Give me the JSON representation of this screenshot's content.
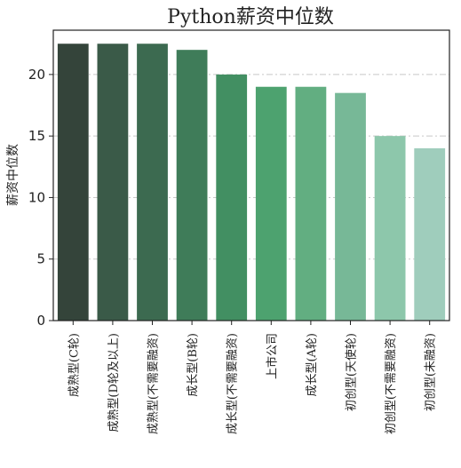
{
  "chart_data": {
    "type": "bar",
    "title": "Python薪资中位数",
    "xlabel": "",
    "ylabel": "薪资中位数",
    "ylim": [
      0,
      23.6
    ],
    "yticks": [
      0,
      5,
      10,
      15,
      20
    ],
    "grid": true,
    "categories": [
      "成熟型(C轮)",
      "成熟型(D轮及以上)",
      "成熟型(不需要融资)",
      "成长型(B轮)",
      "成长型(不需要融资)",
      "上市公司",
      "成长型(A轮)",
      "初创型(天使轮)",
      "初创型(不需要融资)",
      "初创型(未融资)"
    ],
    "values": [
      22.5,
      22.5,
      22.5,
      22,
      20,
      19,
      19,
      18.5,
      15,
      14
    ],
    "colors": [
      "#34443a",
      "#3a5a48",
      "#3c6a50",
      "#3f7c59",
      "#428f62",
      "#4da26f",
      "#62ae81",
      "#77b897",
      "#8dc7ab",
      "#9fcdbc"
    ]
  }
}
